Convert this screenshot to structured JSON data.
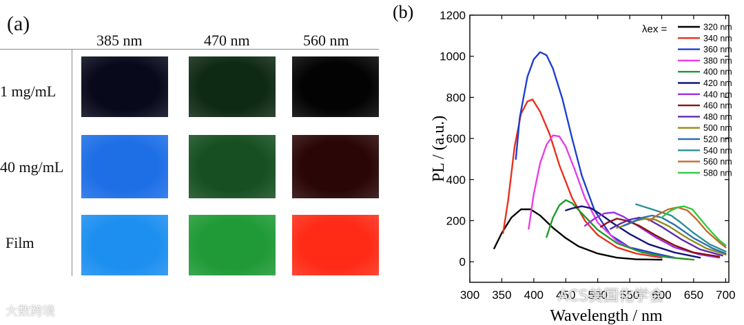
{
  "panel_a": {
    "label": "(a)",
    "columns": [
      "385 nm",
      "470 nm",
      "560 nm"
    ],
    "rows": [
      {
        "label": "1 mg/mL",
        "colors": [
          "#080a1c",
          "#0f2a14",
          "#030303"
        ]
      },
      {
        "label": "40 mg/mL",
        "colors": [
          "#1e6fe6",
          "#174f22",
          "#2a0606"
        ]
      },
      {
        "label": "Film",
        "colors": [
          "#1d8ff0",
          "#1f9a36",
          "#ff2b16"
        ]
      }
    ]
  },
  "chart_data": {
    "type": "line",
    "panel_label": "(b)",
    "xlabel": "Wavelength / nm",
    "ylabel": "PL / (a.u.)",
    "xlim": [
      300,
      705
    ],
    "ylim": [
      -100,
      1200
    ],
    "xticks": [
      300,
      350,
      400,
      450,
      500,
      550,
      600,
      650,
      700
    ],
    "yticks": [
      0,
      200,
      400,
      600,
      800,
      1000,
      1200
    ],
    "legend_title": "λex =",
    "legend_position": "top-right",
    "series": [
      {
        "name": "320 nm",
        "color": "#000000",
        "points": [
          [
            338,
            65
          ],
          [
            350,
            140
          ],
          [
            365,
            215
          ],
          [
            380,
            255
          ],
          [
            395,
            255
          ],
          [
            410,
            225
          ],
          [
            430,
            165
          ],
          [
            450,
            115
          ],
          [
            470,
            75
          ],
          [
            500,
            40
          ],
          [
            530,
            20
          ],
          [
            560,
            12
          ],
          [
            600,
            10
          ]
        ]
      },
      {
        "name": "340 nm",
        "color": "#e8301e",
        "points": [
          [
            352,
            140
          ],
          [
            360,
            300
          ],
          [
            370,
            560
          ],
          [
            380,
            720
          ],
          [
            390,
            780
          ],
          [
            398,
            790
          ],
          [
            410,
            730
          ],
          [
            425,
            620
          ],
          [
            440,
            470
          ],
          [
            460,
            310
          ],
          [
            480,
            200
          ],
          [
            500,
            130
          ],
          [
            530,
            70
          ],
          [
            560,
            40
          ],
          [
            600,
            20
          ]
        ]
      },
      {
        "name": "360 nm",
        "color": "#1f3ecf",
        "points": [
          [
            372,
            500
          ],
          [
            378,
            700
          ],
          [
            390,
            900
          ],
          [
            400,
            985
          ],
          [
            410,
            1020
          ],
          [
            420,
            1005
          ],
          [
            430,
            940
          ],
          [
            445,
            790
          ],
          [
            460,
            600
          ],
          [
            475,
            420
          ],
          [
            495,
            250
          ],
          [
            520,
            130
          ],
          [
            550,
            70
          ],
          [
            590,
            40
          ],
          [
            620,
            20
          ]
        ]
      },
      {
        "name": "380 nm",
        "color": "#e83ce6",
        "points": [
          [
            392,
            160
          ],
          [
            400,
            330
          ],
          [
            410,
            480
          ],
          [
            420,
            570
          ],
          [
            430,
            615
          ],
          [
            440,
            610
          ],
          [
            450,
            560
          ],
          [
            465,
            440
          ],
          [
            480,
            310
          ],
          [
            500,
            190
          ],
          [
            530,
            100
          ],
          [
            560,
            55
          ],
          [
            600,
            25
          ],
          [
            640,
            12
          ]
        ]
      },
      {
        "name": "400 nm",
        "color": "#1f9a2a",
        "points": [
          [
            420,
            120
          ],
          [
            430,
            215
          ],
          [
            440,
            275
          ],
          [
            450,
            300
          ],
          [
            460,
            285
          ],
          [
            480,
            220
          ],
          [
            500,
            155
          ],
          [
            530,
            90
          ],
          [
            570,
            45
          ],
          [
            610,
            22
          ],
          [
            650,
            10
          ]
        ]
      },
      {
        "name": "420 nm",
        "color": "#14137a",
        "points": [
          [
            450,
            250
          ],
          [
            460,
            260
          ],
          [
            475,
            270
          ],
          [
            490,
            260
          ],
          [
            505,
            230
          ],
          [
            525,
            185
          ],
          [
            550,
            135
          ],
          [
            580,
            85
          ],
          [
            620,
            45
          ],
          [
            660,
            20
          ]
        ]
      },
      {
        "name": "440 nm",
        "color": "#9b2fe6",
        "points": [
          [
            480,
            175
          ],
          [
            495,
            210
          ],
          [
            510,
            235
          ],
          [
            525,
            240
          ],
          [
            540,
            220
          ],
          [
            560,
            180
          ],
          [
            590,
            120
          ],
          [
            620,
            70
          ],
          [
            660,
            35
          ],
          [
            690,
            20
          ]
        ]
      },
      {
        "name": "460 nm",
        "color": "#8a1010",
        "points": [
          [
            505,
            170
          ],
          [
            515,
            190
          ],
          [
            530,
            210
          ],
          [
            545,
            200
          ],
          [
            565,
            175
          ],
          [
            590,
            130
          ],
          [
            620,
            80
          ],
          [
            650,
            45
          ],
          [
            690,
            25
          ]
        ]
      },
      {
        "name": "480 nm",
        "color": "#5c2bb0",
        "points": [
          [
            520,
            160
          ],
          [
            535,
            185
          ],
          [
            550,
            205
          ],
          [
            565,
            215
          ],
          [
            580,
            205
          ],
          [
            600,
            170
          ],
          [
            630,
            110
          ],
          [
            660,
            60
          ],
          [
            695,
            30
          ]
        ]
      },
      {
        "name": "500 nm",
        "color": "#8f8c1e",
        "points": [
          [
            530,
            165
          ],
          [
            545,
            180
          ],
          [
            560,
            200
          ],
          [
            575,
            210
          ],
          [
            590,
            205
          ],
          [
            610,
            175
          ],
          [
            640,
            115
          ],
          [
            670,
            65
          ],
          [
            700,
            35
          ]
        ]
      },
      {
        "name": "520 nm",
        "color": "#2a6fb0",
        "points": [
          [
            540,
            175
          ],
          [
            555,
            195
          ],
          [
            570,
            215
          ],
          [
            585,
            225
          ],
          [
            600,
            215
          ],
          [
            620,
            180
          ],
          [
            650,
            115
          ],
          [
            680,
            65
          ],
          [
            700,
            40
          ]
        ]
      },
      {
        "name": "540 nm",
        "color": "#2b8f96",
        "points": [
          [
            560,
            280
          ],
          [
            570,
            270
          ],
          [
            585,
            255
          ],
          [
            600,
            240
          ],
          [
            615,
            225
          ],
          [
            630,
            190
          ],
          [
            650,
            140
          ],
          [
            675,
            85
          ],
          [
            700,
            50
          ]
        ]
      },
      {
        "name": "560 nm",
        "color": "#c46a2a",
        "points": [
          [
            580,
            200
          ],
          [
            595,
            230
          ],
          [
            610,
            255
          ],
          [
            625,
            265
          ],
          [
            640,
            250
          ],
          [
            655,
            205
          ],
          [
            670,
            150
          ],
          [
            690,
            95
          ],
          [
            700,
            70
          ]
        ]
      },
      {
        "name": "580 nm",
        "color": "#33c742",
        "points": [
          [
            600,
            215
          ],
          [
            612,
            245
          ],
          [
            625,
            265
          ],
          [
            635,
            270
          ],
          [
            648,
            255
          ],
          [
            660,
            210
          ],
          [
            675,
            155
          ],
          [
            690,
            105
          ],
          [
            700,
            80
          ]
        ]
      }
    ]
  },
  "watermarks": {
    "left": "大数跨境",
    "right": "ACS美国化学会"
  }
}
